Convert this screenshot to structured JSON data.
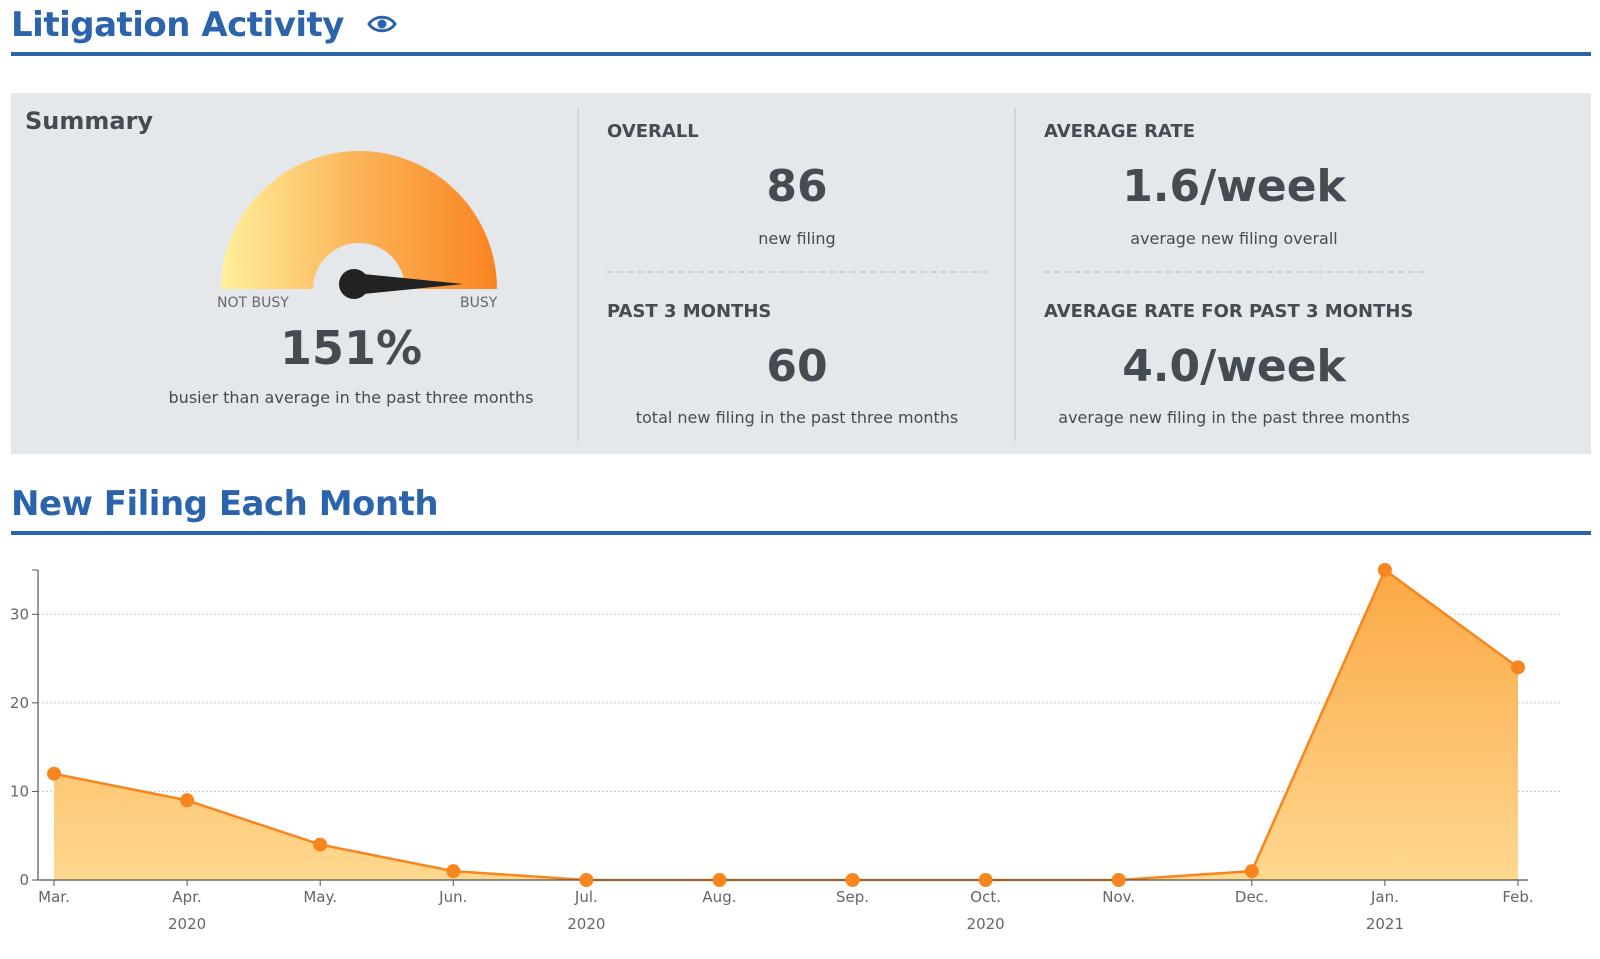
{
  "header": {
    "title": "Litigation Activity",
    "icon": "eye-icon"
  },
  "summary": {
    "title": "Summary",
    "gauge": {
      "left_label": "NOT BUSY",
      "right_label": "BUSY",
      "value_text": "151%",
      "caption": "busier than average in the past three months",
      "level_fraction": 0.98
    },
    "overall": {
      "label": "OVERALL",
      "value": "86",
      "sub": "new filing"
    },
    "past3": {
      "label": "PAST 3 MONTHS",
      "value": "60",
      "sub": "total new filing in the past three months"
    },
    "avg_rate": {
      "label": "AVERAGE RATE",
      "value": "1.6/week",
      "sub": "average new filing overall"
    },
    "avg_rate_3m": {
      "label": "AVERAGE RATE FOR PAST 3 MONTHS",
      "value": "4.0/week",
      "sub": "average new filing in the past three months"
    }
  },
  "section2": {
    "title": "New Filing Each Month"
  },
  "colors": {
    "accent": "#2b63ad",
    "series": "#f7861e",
    "area": "#fdc86f",
    "panel": "#e5e8ea"
  },
  "chart_data": {
    "type": "area",
    "title": "",
    "xlabel": "",
    "ylabel": "",
    "x": [
      "Mar.",
      "Apr.",
      "May.",
      "Jun.",
      "Jul.",
      "Aug.",
      "Sep.",
      "Oct.",
      "Nov.",
      "Dec.",
      "Jan.",
      "Feb."
    ],
    "year_labels": [
      {
        "after": "Apr.",
        "text": "2020"
      },
      {
        "after": "Jul.",
        "text": "2020"
      },
      {
        "after": "Oct.",
        "text": "2020"
      },
      {
        "after": "Jan.",
        "text": "2021"
      }
    ],
    "values": [
      12,
      9,
      4,
      1,
      0,
      0,
      0,
      0,
      0,
      1,
      35,
      24
    ],
    "ylim": [
      0,
      35
    ],
    "yticks": [
      0,
      10,
      20,
      30
    ],
    "grid": true
  }
}
